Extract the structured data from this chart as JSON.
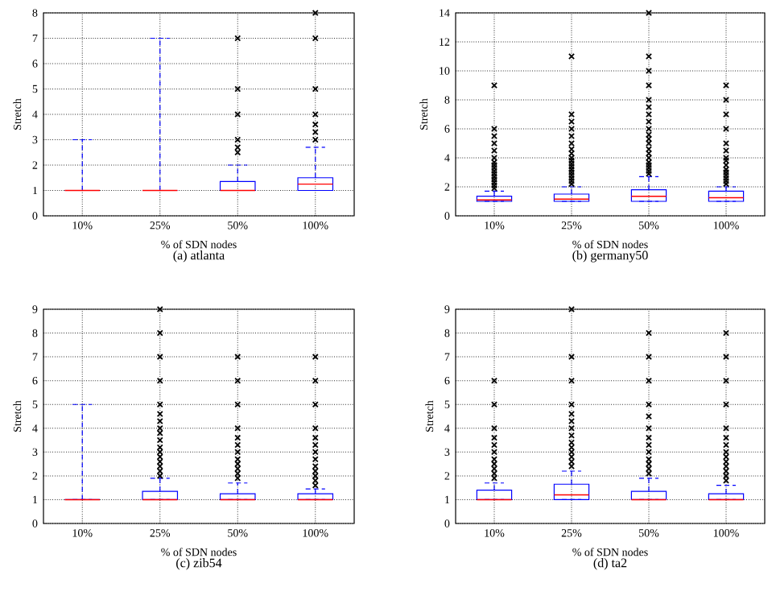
{
  "chart_data": [
    {
      "type": "box",
      "title": "(a) atlanta",
      "xlabel": "% of SDN nodes",
      "ylabel": "Stretch",
      "categories": [
        "10%",
        "25%",
        "50%",
        "100%"
      ],
      "ylim": [
        0,
        8
      ],
      "yticks": [
        0,
        1,
        2,
        3,
        4,
        5,
        6,
        7,
        8
      ],
      "grid": true,
      "marker": "cross",
      "series": [
        {
          "color": "#0000ff",
          "boxes": [
            {
              "low": 1,
              "q1": 1,
              "median": 1,
              "q3": 1,
              "high": 3
            },
            {
              "low": 1,
              "q1": 1,
              "median": 1,
              "q3": 1,
              "high": 7
            },
            {
              "low": 1,
              "q1": 1,
              "median": 1,
              "q3": 1.35,
              "high": 2,
              "outliers": [
                2.5,
                2.7,
                3,
                4,
                5,
                7
              ]
            },
            {
              "low": 1,
              "q1": 1,
              "median": 1.25,
              "q3": 1.5,
              "high": 2.7,
              "outliers": [
                3,
                3.3,
                3.6,
                4,
                5,
                7,
                8
              ]
            }
          ]
        }
      ]
    },
    {
      "type": "box",
      "title": "(b) germany50",
      "xlabel": "% of SDN nodes",
      "ylabel": "Stretch",
      "categories": [
        "10%",
        "25%",
        "50%",
        "100%"
      ],
      "ylim": [
        0,
        14
      ],
      "yticks": [
        0,
        2,
        4,
        6,
        8,
        10,
        12,
        14
      ],
      "grid": true,
      "marker": "cross",
      "series": [
        {
          "color": "#0000ff",
          "boxes": [
            {
              "low": 1,
              "q1": 1,
              "median": 1.1,
              "q3": 1.35,
              "high": 1.7,
              "outliers": [
                1.9,
                2.1,
                2.3,
                2.5,
                2.7,
                2.9,
                3.1,
                3.3,
                3.5,
                3.7,
                4,
                4.5,
                5,
                5.5,
                6,
                9
              ]
            },
            {
              "low": 1,
              "q1": 1,
              "median": 1.15,
              "q3": 1.5,
              "high": 2,
              "outliers": [
                2.2,
                2.4,
                2.6,
                2.8,
                3,
                3.2,
                3.4,
                3.6,
                3.8,
                4,
                4.3,
                4.6,
                5,
                5.5,
                6,
                6.5,
                7,
                11
              ]
            },
            {
              "low": 1,
              "q1": 1,
              "median": 1.35,
              "q3": 1.8,
              "high": 2.7,
              "outliers": [
                2.9,
                3.1,
                3.3,
                3.5,
                3.7,
                4,
                4.3,
                4.6,
                5,
                5.3,
                5.6,
                6,
                6.5,
                7,
                7.5,
                8,
                9,
                10,
                11,
                14
              ]
            },
            {
              "low": 1,
              "q1": 1,
              "median": 1.25,
              "q3": 1.7,
              "high": 2,
              "outliers": [
                2.2,
                2.4,
                2.6,
                2.8,
                3,
                3.2,
                3.5,
                3.8,
                4,
                4.5,
                5,
                6,
                7,
                8,
                9
              ]
            }
          ]
        }
      ]
    },
    {
      "type": "box",
      "title": "(c) zib54",
      "xlabel": "% of SDN nodes",
      "ylabel": "Stretch",
      "categories": [
        "10%",
        "25%",
        "50%",
        "100%"
      ],
      "ylim": [
        0,
        9
      ],
      "yticks": [
        0,
        1,
        2,
        3,
        4,
        5,
        6,
        7,
        8,
        9
      ],
      "grid": true,
      "marker": "cross",
      "series": [
        {
          "color": "#0000ff",
          "boxes": [
            {
              "low": 1,
              "q1": 1,
              "median": 1,
              "q3": 1,
              "high": 5
            },
            {
              "low": 1,
              "q1": 1,
              "median": 1,
              "q3": 1.35,
              "high": 1.9,
              "outliers": [
                2,
                2.2,
                2.4,
                2.6,
                2.8,
                3,
                3.2,
                3.5,
                3.8,
                4,
                4.3,
                4.6,
                5,
                6,
                7,
                8,
                9
              ]
            },
            {
              "low": 1,
              "q1": 1,
              "median": 1,
              "q3": 1.25,
              "high": 1.7,
              "outliers": [
                1.9,
                2.1,
                2.3,
                2.5,
                2.7,
                3,
                3.3,
                3.6,
                4,
                5,
                6,
                7
              ]
            },
            {
              "low": 1,
              "q1": 1,
              "median": 1,
              "q3": 1.25,
              "high": 1.45,
              "outliers": [
                1.6,
                1.8,
                2,
                2.2,
                2.4,
                2.7,
                3,
                3.3,
                3.6,
                4,
                5,
                6,
                7
              ]
            }
          ]
        }
      ]
    },
    {
      "type": "box",
      "title": "(d) ta2",
      "xlabel": "% of SDN nodes",
      "ylabel": "Stretch",
      "categories": [
        "10%",
        "25%",
        "50%",
        "100%"
      ],
      "ylim": [
        0,
        9
      ],
      "yticks": [
        0,
        1,
        2,
        3,
        4,
        5,
        6,
        7,
        8,
        9
      ],
      "grid": true,
      "marker": "cross",
      "series": [
        {
          "color": "#0000ff",
          "boxes": [
            {
              "low": 1,
              "q1": 1,
              "median": 1,
              "q3": 1.4,
              "high": 1.7,
              "outliers": [
                1.9,
                2.1,
                2.3,
                2.5,
                2.7,
                3,
                3.3,
                3.6,
                4,
                5,
                6
              ]
            },
            {
              "low": 1,
              "q1": 1,
              "median": 1.2,
              "q3": 1.65,
              "high": 2.2,
              "outliers": [
                2.4,
                2.6,
                2.8,
                3,
                3.2,
                3.4,
                3.7,
                4,
                4.3,
                4.6,
                5,
                6,
                7,
                9
              ]
            },
            {
              "low": 1,
              "q1": 1,
              "median": 1,
              "q3": 1.35,
              "high": 1.9,
              "outliers": [
                2.1,
                2.3,
                2.5,
                2.7,
                3,
                3.3,
                3.6,
                4,
                4.5,
                5,
                6,
                7,
                8
              ]
            },
            {
              "low": 1,
              "q1": 1,
              "median": 1,
              "q3": 1.25,
              "high": 1.6,
              "outliers": [
                1.8,
                2,
                2.2,
                2.4,
                2.6,
                2.8,
                3,
                3.3,
                3.6,
                4,
                5,
                6,
                7,
                8
              ]
            }
          ]
        }
      ]
    }
  ]
}
